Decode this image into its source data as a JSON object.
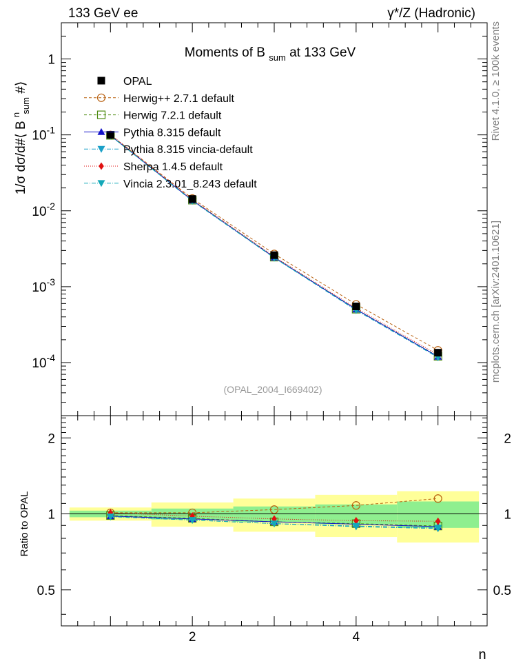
{
  "header": {
    "left": "133 GeV ee",
    "right": "γ*/Z (Hadronic)"
  },
  "side_labels": {
    "rivet": "Rivet 4.1.0, ≥ 100k events",
    "mcplots": "mcplots.cern.ch [arXiv:2401.10621]"
  },
  "chart_data": {
    "type": "line",
    "title": "Moments of B sum at 133 GeV",
    "title_parts": {
      "main": "Moments of B",
      "sub": "sum",
      "tail": " at 133 GeV"
    },
    "analysis_tag": "(OPAL_2004_I669402)",
    "x": [
      1,
      2,
      3,
      4,
      5
    ],
    "xlabel": "n",
    "xlim": [
      0.4,
      5.6
    ],
    "x_ticks": [
      2,
      4
    ],
    "ylabel": "1/σ  dσ/d#⟨ B^n_sum #⟩",
    "ylabel_parts": {
      "pre": "1/σ  dσ/d#⟨ B",
      "sup": "n",
      "sub": "sum",
      "post": "#⟩"
    },
    "ylim": [
      2e-05,
      3
    ],
    "yscale": "log",
    "y_ticks": [
      {
        "base": "10",
        "exp": "-4",
        "value": 0.0001
      },
      {
        "base": "10",
        "exp": "-3",
        "value": 0.001
      },
      {
        "base": "10",
        "exp": "-2",
        "value": 0.01
      },
      {
        "base": "10",
        "exp": "-1",
        "value": 0.1
      },
      {
        "base": "1",
        "exp": "",
        "value": 1
      }
    ],
    "data": {
      "name": "OPAL",
      "values": [
        0.1,
        0.0143,
        0.0026,
        0.00055,
        0.000135
      ],
      "stat_ratio_err": [
        0.03,
        0.05,
        0.07,
        0.09,
        0.12
      ],
      "total_ratio_err": [
        0.06,
        0.11,
        0.15,
        0.19,
        0.23
      ],
      "color": "#000000"
    },
    "series": [
      {
        "name": "Herwig++ 2.7.1 default",
        "color": "#b8600f",
        "marker": "open-circle",
        "dash": "4,3",
        "values": [
          0.1,
          0.0145,
          0.0027,
          0.000585,
          0.000145
        ],
        "ratio": [
          1.01,
          1.01,
          1.04,
          1.08,
          1.15
        ]
      },
      {
        "name": "Herwig 7.2.1 default",
        "color": "#4c8a0f",
        "marker": "open-square",
        "dash": "4,3",
        "values": [
          0.0985,
          0.0138,
          0.00245,
          0.000505,
          0.000121
        ],
        "ratio": [
          0.985,
          0.96,
          0.93,
          0.915,
          0.895
        ]
      },
      {
        "name": "Pythia 8.315 default",
        "color": "#1212c8",
        "marker": "triangle-up",
        "dash": "",
        "values": [
          0.098,
          0.0137,
          0.00243,
          0.000502,
          0.00012
        ],
        "ratio": [
          0.98,
          0.955,
          0.93,
          0.91,
          0.89
        ]
      },
      {
        "name": "Pythia 8.315 vincia-default",
        "color": "#1aa0c8",
        "marker": "triangle-down",
        "dash": "6,2,1,2",
        "values": [
          0.0975,
          0.0135,
          0.0024,
          0.00049,
          0.000117
        ],
        "ratio": [
          0.975,
          0.945,
          0.915,
          0.89,
          0.875
        ]
      },
      {
        "name": "Sherpa 1.4.5 default",
        "color": "#e01010",
        "marker": "diamond",
        "dash": "1,2",
        "values": [
          0.101,
          0.014,
          0.0025,
          0.00052,
          0.000127
        ],
        "ratio": [
          1.01,
          0.98,
          0.955,
          0.94,
          0.935
        ]
      },
      {
        "name": "Vincia 2.3.01_8.243 default",
        "color": "#12a8b8",
        "marker": "triangle-down",
        "dash": "6,2,1,2",
        "values": [
          0.0975,
          0.0135,
          0.0024,
          0.000492,
          0.000117
        ],
        "ratio": [
          0.975,
          0.945,
          0.915,
          0.895,
          0.88
        ]
      }
    ],
    "ratio_panel": {
      "ylabel": "Ratio to OPAL",
      "ylim": [
        0.36,
        2.45
      ],
      "y_ticks": [
        {
          "value": 0.5,
          "label": "0.5"
        },
        {
          "value": 1,
          "label": "1"
        },
        {
          "value": 2,
          "label": "2"
        }
      ]
    }
  }
}
